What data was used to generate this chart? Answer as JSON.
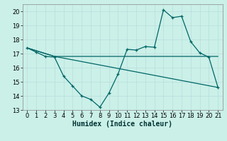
{
  "xlabel": "Humidex (Indice chaleur)",
  "background_color": "#caf0e8",
  "line_color": "#006666",
  "xlim": [
    -0.5,
    21.5
  ],
  "ylim": [
    13.0,
    20.5
  ],
  "yticks": [
    13,
    14,
    15,
    16,
    17,
    18,
    19,
    20
  ],
  "xticks": [
    0,
    1,
    2,
    3,
    4,
    5,
    6,
    7,
    8,
    9,
    10,
    11,
    12,
    13,
    14,
    15,
    16,
    17,
    18,
    19,
    20,
    21
  ],
  "line1_x": [
    0,
    1,
    2,
    3,
    4,
    5,
    6,
    7,
    8,
    9,
    10,
    11,
    12,
    13,
    14,
    15,
    16,
    17,
    18,
    19,
    20,
    21
  ],
  "line1_y": [
    17.4,
    17.1,
    16.8,
    16.75,
    15.4,
    14.7,
    14.0,
    13.75,
    13.2,
    14.2,
    15.55,
    17.3,
    17.25,
    17.5,
    17.45,
    20.1,
    19.55,
    19.65,
    17.85,
    17.05,
    16.75,
    14.6
  ],
  "line2_x": [
    0,
    3,
    21
  ],
  "line2_y": [
    17.4,
    16.8,
    16.8
  ],
  "line3_x": [
    0,
    3,
    21
  ],
  "line3_y": [
    17.4,
    16.8,
    14.6
  ],
  "grid_major_color": "#bbdddd",
  "tick_fontsize": 6,
  "xlabel_fontsize": 7
}
